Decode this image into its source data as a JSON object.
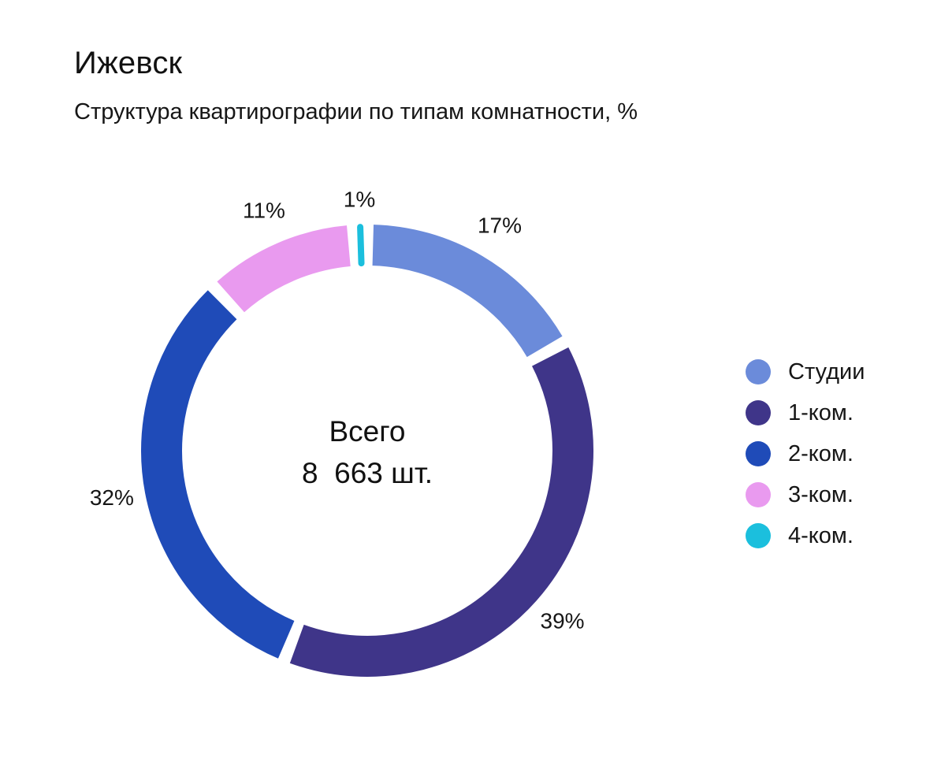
{
  "title": "Ижевск",
  "subtitle": "Структура квартирографии по типам комнатности, %",
  "center": {
    "line1": "Всего",
    "line2": "8  663 шт."
  },
  "chart_data": {
    "type": "pie",
    "title": "Ижевск",
    "subtitle": "Структура квартирографии по типам комнатности, %",
    "total": "8  663 шт.",
    "categories": [
      "Студии",
      "1-ком.",
      "2-ком.",
      "3-ком.",
      "4-ком."
    ],
    "values": [
      17,
      39,
      32,
      11,
      1
    ],
    "labels": [
      "17%",
      "39%",
      "32%",
      "11%",
      "1%"
    ],
    "colors": [
      "#6B8BDA",
      "#3F3589",
      "#1F4BB8",
      "#E99AEF",
      "#1BBFDD"
    ],
    "legend": "right",
    "donut": true
  }
}
